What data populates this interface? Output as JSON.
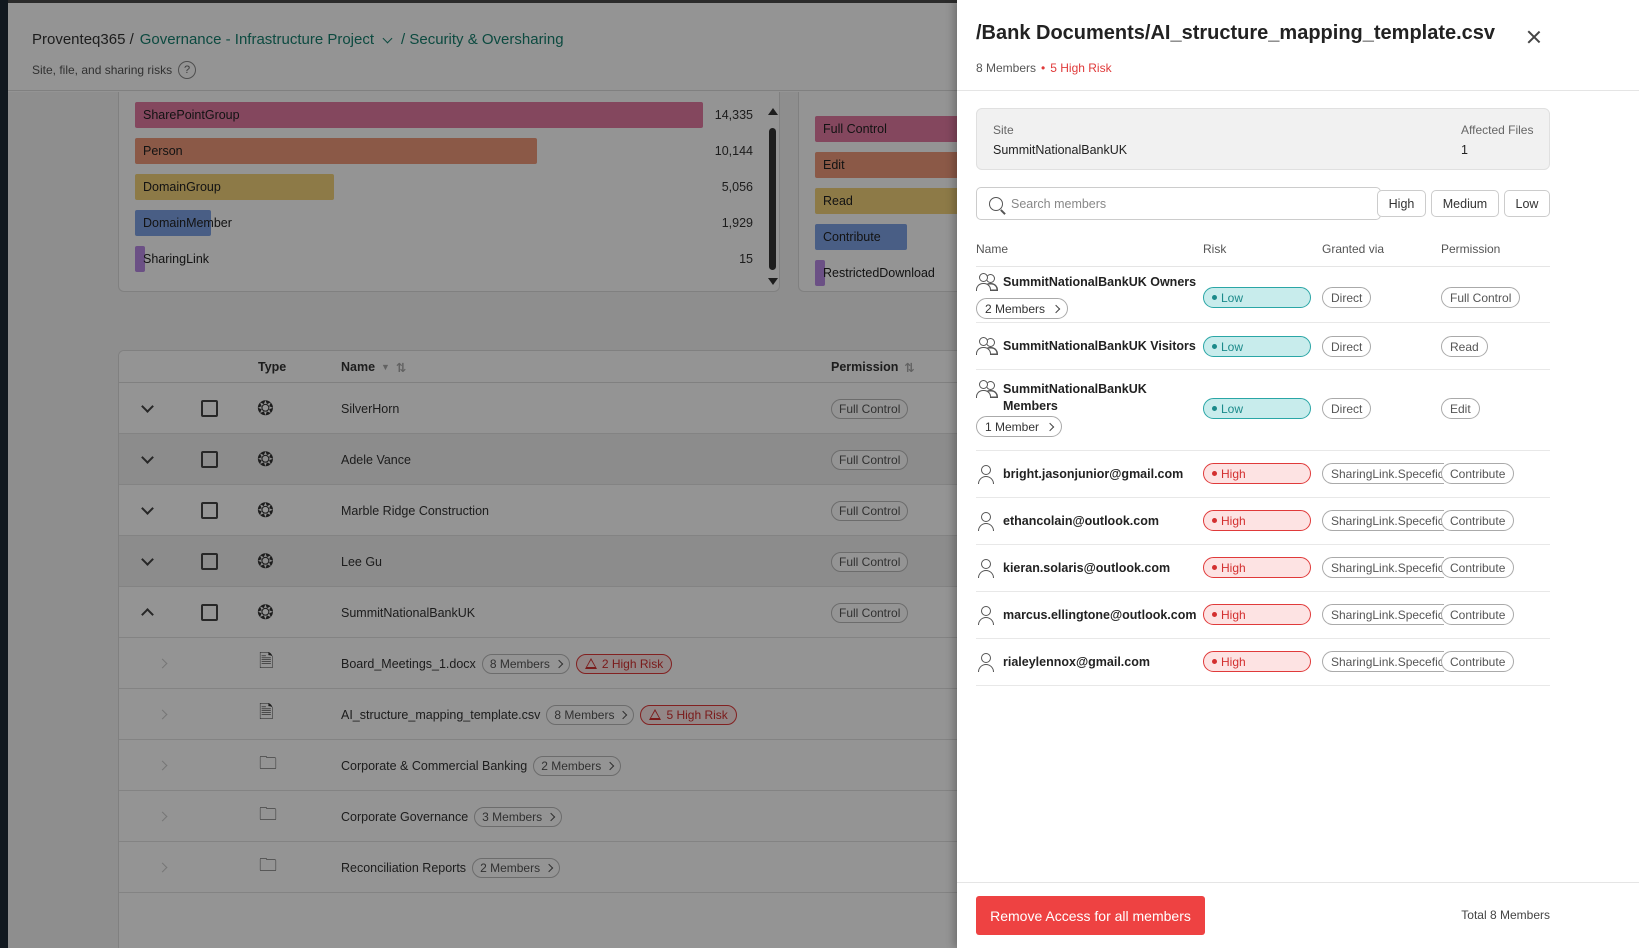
{
  "breadcrumb": {
    "root": "Proventeq365 /",
    "project": "Governance - Infrastructure Project",
    "section": "/ Security & Oversharing"
  },
  "subtitle": "Site, file, and sharing risks",
  "help_label": "?",
  "type_chart": {
    "bars": [
      {
        "label": "SharePointGroup",
        "value": "14,335",
        "color": "#e37aa3"
      },
      {
        "label": "Person",
        "value": "10,144",
        "color": "#f0997a"
      },
      {
        "label": "DomainGroup",
        "value": "5,056",
        "color": "#f3d27a"
      },
      {
        "label": "DomainMember",
        "value": "1,929",
        "color": "#7fa3e6"
      },
      {
        "label": "SharingLink",
        "value": "15",
        "color": "#b98ae6"
      }
    ]
  },
  "perm_chart": {
    "bars": [
      {
        "label": "Full Control",
        "color": "#e37aa3"
      },
      {
        "label": "Edit",
        "color": "#f0997a"
      },
      {
        "label": "Read",
        "color": "#f3d27a"
      },
      {
        "label": "Contribute",
        "color": "#7fa3e6"
      },
      {
        "label": "RestrictedDownload",
        "color": "#b98ae6"
      }
    ]
  },
  "table": {
    "headers": {
      "type": "Type",
      "name": "Name",
      "permission": "Permission"
    },
    "sites": [
      {
        "name": "SilverHorn",
        "permission": "Full Control"
      },
      {
        "name": "Adele Vance",
        "permission": "Full Control"
      },
      {
        "name": "Marble Ridge Construction",
        "permission": "Full Control"
      },
      {
        "name": "Lee Gu",
        "permission": "Full Control"
      },
      {
        "name": "SummitNationalBankUK",
        "permission": "Full Control"
      }
    ],
    "children": [
      {
        "name": "Board_Meetings_1.docx",
        "members": "8 Members",
        "risk": "2 High Risk",
        "kind": "file"
      },
      {
        "name": "AI_structure_mapping_template.csv",
        "members": "8 Members",
        "risk": "5 High Risk",
        "kind": "file"
      },
      {
        "name": "Corporate & Commercial Banking",
        "members": "2 Members",
        "risk": "",
        "kind": "folder"
      },
      {
        "name": "Corporate Governance",
        "members": "3 Members",
        "risk": "",
        "kind": "folder"
      },
      {
        "name": "Reconciliation Reports",
        "members": "2 Members",
        "risk": "",
        "kind": "folder"
      }
    ]
  },
  "drawer": {
    "title": "/Bank Documents/AI_structure_mapping_template.csv",
    "members_count": "8 Members",
    "meta_dot": "•",
    "high_risk": "5 High Risk",
    "site_label": "Site",
    "site_value": "SummitNationalBankUK",
    "affected_label": "Affected Files",
    "affected_value": "1",
    "search_placeholder": "Search members",
    "filters": {
      "high": "High",
      "medium": "Medium",
      "low": "Low"
    },
    "columns": {
      "name": "Name",
      "risk": "Risk",
      "via": "Granted via",
      "permission": "Permission"
    },
    "members": [
      {
        "name": "SummitNationalBankUK Owners",
        "type": "group",
        "sub": "2 Members",
        "risk": "Low",
        "via": "Direct",
        "permission": "Full Control"
      },
      {
        "name": "SummitNationalBankUK Visitors",
        "type": "group",
        "sub": "",
        "risk": "Low",
        "via": "Direct",
        "permission": "Read"
      },
      {
        "name": "SummitNationalBankUK Members",
        "type": "group",
        "sub": "1 Member",
        "risk": "Low",
        "via": "Direct",
        "permission": "Edit"
      },
      {
        "name": "bright.jasonjunior@gmail.com",
        "type": "user",
        "sub": "",
        "risk": "High",
        "via": "SharingLink.Specefic",
        "permission": "Contribute"
      },
      {
        "name": "ethancolain@outlook.com",
        "type": "user",
        "sub": "",
        "risk": "High",
        "via": "SharingLink.Specefic",
        "permission": "Contribute"
      },
      {
        "name": "kieran.solaris@outlook.com",
        "type": "user",
        "sub": "",
        "risk": "High",
        "via": "SharingLink.Specefic",
        "permission": "Contribute"
      },
      {
        "name": "marcus.ellingtone@outlook.com",
        "type": "user",
        "sub": "",
        "risk": "High",
        "via": "SharingLink.Specefic",
        "permission": "Contribute"
      },
      {
        "name": "rialeylennox@gmail.com",
        "type": "user",
        "sub": "",
        "risk": "High",
        "via": "SharingLink.Specefic",
        "permission": "Contribute"
      }
    ],
    "remove_button": "Remove Access for all members",
    "total": "Total 8 Members"
  }
}
